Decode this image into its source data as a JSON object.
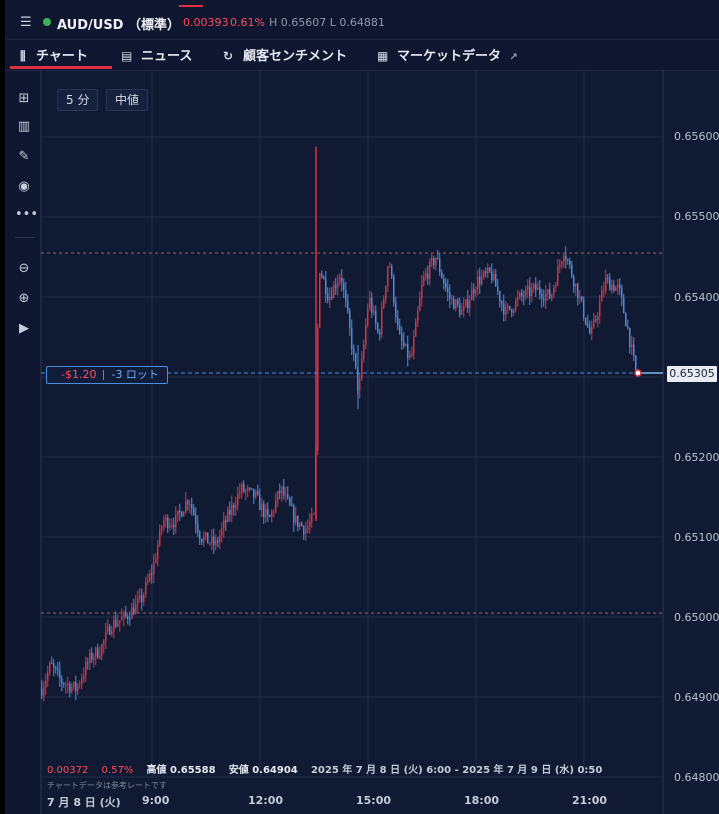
{
  "header": {
    "menu_icon": "hamburger-icon",
    "symbol": "AUD/USD （標準）",
    "change_value": "0.00393",
    "change_percent": "0.61%",
    "high_low": "H 0.65607  L 0.64881",
    "status_color": "#3cb35a",
    "up_color": "#e03040"
  },
  "tabs": [
    {
      "label": "チャート",
      "icon": "chart-icon",
      "active": true
    },
    {
      "label": "ニュース",
      "icon": "news-icon"
    },
    {
      "label": "顧客センチメント",
      "icon": "sentiment-icon"
    },
    {
      "label": "マーケットデータ",
      "icon": "market-data-icon",
      "external_icon": "external-link-icon"
    }
  ],
  "sidebar": {
    "icons": [
      "calculator-icon",
      "bar-chart-icon",
      "pencil-icon",
      "eye-icon",
      "more-icon",
      "zoom-out-icon",
      "zoom-in-icon",
      "play-end-icon"
    ]
  },
  "controls": {
    "timeframe": "5 分",
    "price_type": "中値"
  },
  "position": {
    "pnl": "-$1.20",
    "lots": "-3 ロット",
    "current_price": "0.65305"
  },
  "price_axis": [
    "0.65600",
    "0.65500",
    "0.65400",
    "0.65200",
    "0.65100",
    "0.65000",
    "0.64900",
    "0.64800"
  ],
  "time_axis": [
    "7 月 8 日 (火)",
    "9:00",
    "12:00",
    "15:00",
    "18:00",
    "21:00"
  ],
  "info_bar": {
    "change": "0.00372",
    "change_pct": "0.57%",
    "high": "高値 0.65588",
    "low": "安値 0.64904",
    "range": "2025 年 7 月 8 日 (火) 6:00 - 2025 年 7 月 9 日 (水) 0:50",
    "note": "チャートデータは参考レートです"
  },
  "chart_data": {
    "type": "candlestick",
    "x": [
      "6:00",
      "9:00",
      "12:00",
      "13:30",
      "13:35",
      "15:00",
      "18:00",
      "21:00",
      "0:50"
    ],
    "y": [
      0.64904,
      0.6506,
      0.6515,
      0.6512,
      0.6544,
      0.6532,
      0.6541,
      0.6542,
      0.65305
    ],
    "high": 0.65588,
    "low": 0.64904,
    "ylim": [
      0.648,
      0.6566
    ],
    "reference_lines": [
      0.65455,
      0.65005
    ],
    "up_color": "#e03040",
    "down_color": "#4a8ee0"
  }
}
